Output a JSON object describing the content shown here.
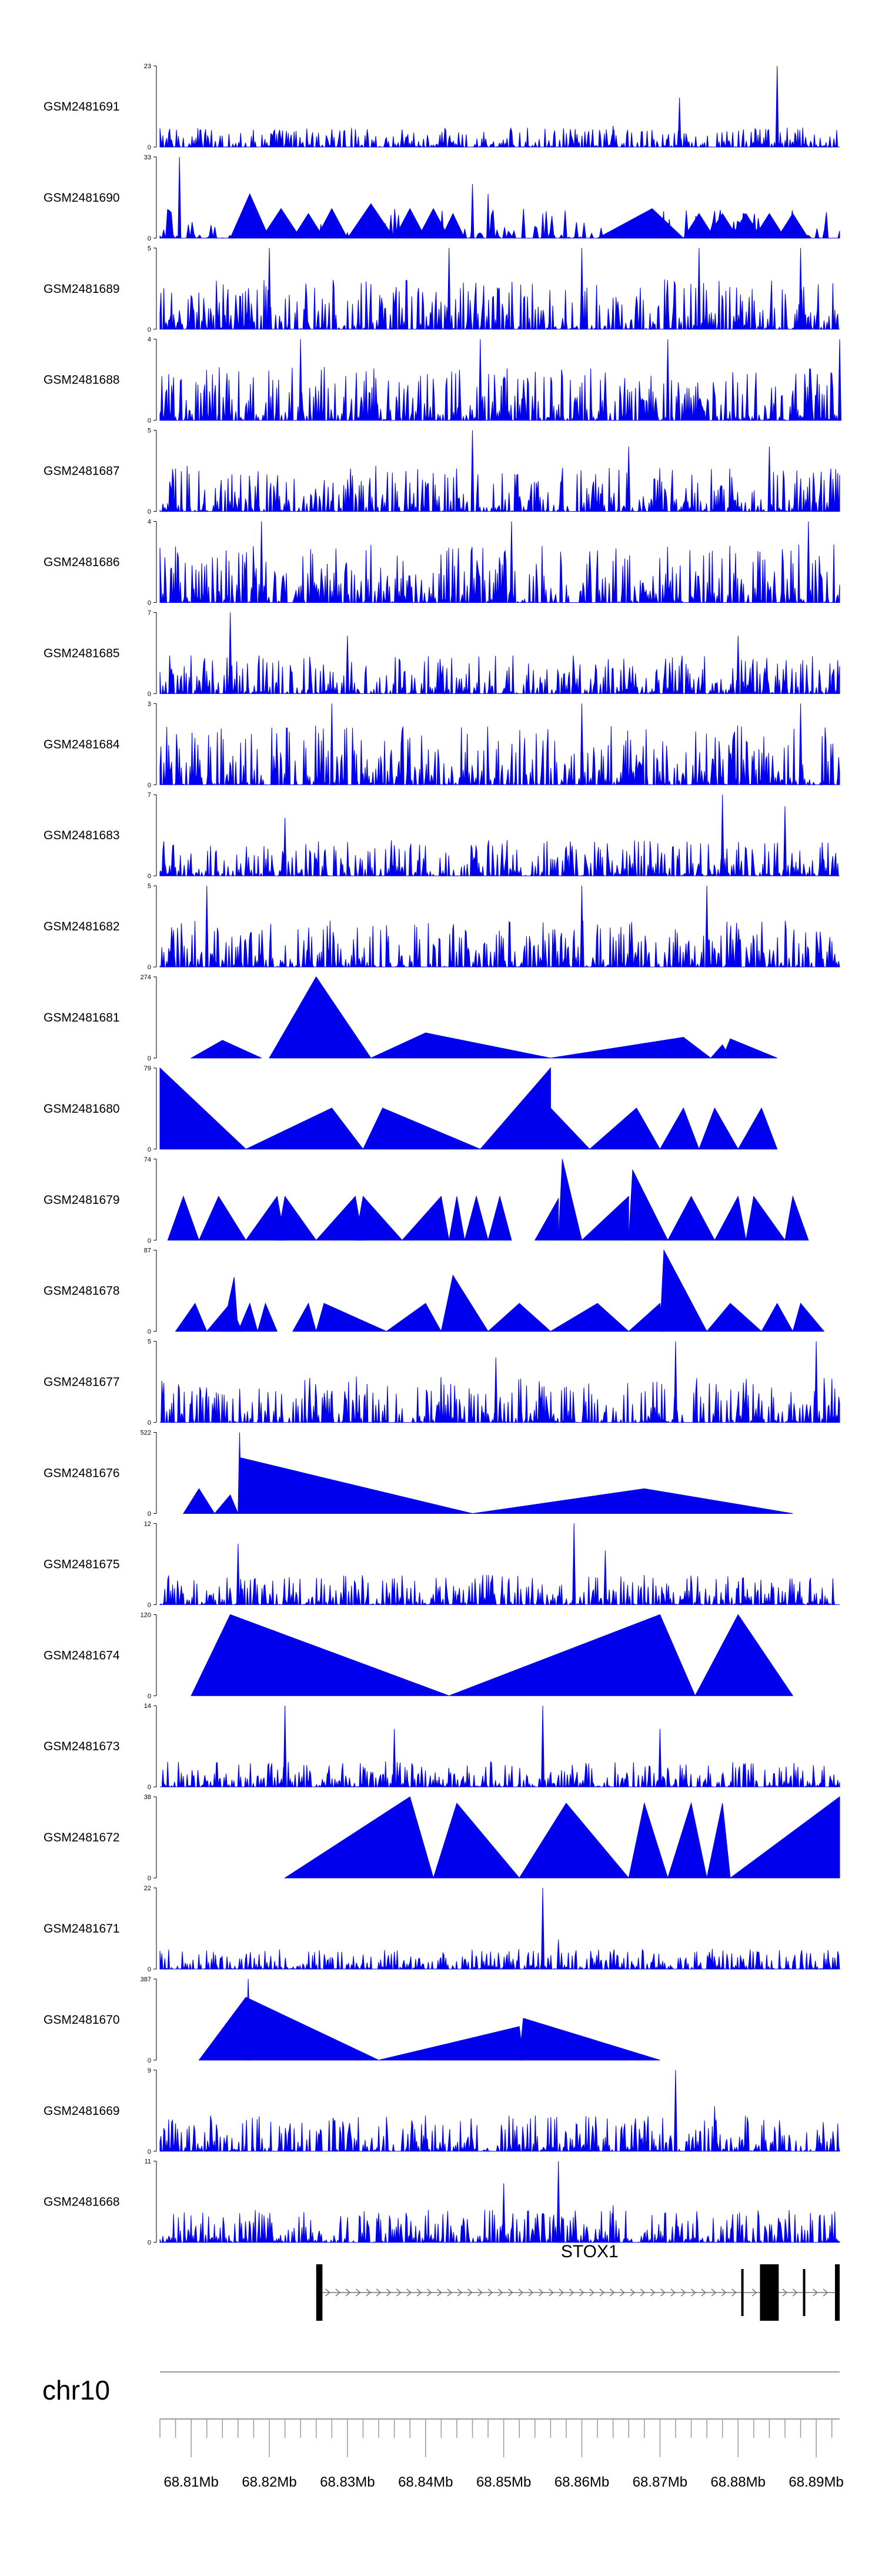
{
  "colors": {
    "signal": "#0000ee",
    "axis": "#000000",
    "gene": "#000000",
    "line": "#999999"
  },
  "genome": {
    "chromosome": "chr10",
    "start": 68806000,
    "end": 68893000
  },
  "gene": {
    "name": "STOX1",
    "strand": "+",
    "start": 68826000,
    "end": 68893000,
    "exons": [
      {
        "start": 68826000,
        "end": 68826800,
        "kind": "cds"
      },
      {
        "start": 68880400,
        "end": 68880700,
        "kind": "utr"
      },
      {
        "start": 68882800,
        "end": 68885200,
        "kind": "cds"
      },
      {
        "start": 68888300,
        "end": 68888600,
        "kind": "utr"
      },
      {
        "start": 68892400,
        "end": 68893000,
        "kind": "cds"
      }
    ]
  },
  "axis": {
    "ticks": [
      {
        "pos": 68810000,
        "label": "68.81Mb"
      },
      {
        "pos": 68820000,
        "label": "68.82Mb"
      },
      {
        "pos": 68830000,
        "label": "68.83Mb"
      },
      {
        "pos": 68840000,
        "label": "68.84Mb"
      },
      {
        "pos": 68850000,
        "label": "68.85Mb"
      },
      {
        "pos": 68860000,
        "label": "68.86Mb"
      },
      {
        "pos": 68870000,
        "label": "68.87Mb"
      },
      {
        "pos": 68880000,
        "label": "68.88Mb"
      },
      {
        "pos": 68890000,
        "label": "68.89Mb"
      }
    ],
    "minor_step": 2000
  },
  "chart_data": {
    "type": "area",
    "tracks": [
      {
        "name": "GSM2481691",
        "ymax": 23,
        "kind": "dense",
        "base": 2.5,
        "peaks": [
          [
            68872500,
            14
          ],
          [
            68885000,
            23
          ],
          [
            68828000,
            5
          ],
          [
            68864000,
            6
          ]
        ]
      },
      {
        "name": "GSM2481690",
        "ymax": 33,
        "kind": "mixed",
        "base": 6,
        "peaks": [
          [
            68808500,
            33
          ],
          [
            68846000,
            22
          ],
          [
            68848000,
            18
          ],
          [
            68855000,
            10
          ]
        ],
        "triangles": [
          [
            68815000,
            68817500,
            68820000,
            18
          ],
          [
            68819000,
            68821500,
            68824000,
            12
          ],
          [
            68823000,
            68825000,
            68827000,
            10
          ],
          [
            68826000,
            68828000,
            68830000,
            12
          ],
          [
            68830000,
            68833000,
            68836000,
            14
          ],
          [
            68836000,
            68838000,
            68840000,
            12
          ],
          [
            68839000,
            68841000,
            68843000,
            12
          ],
          [
            68842000,
            68843500,
            68845000,
            10
          ],
          [
            68862000,
            68869000,
            68873000,
            12
          ],
          [
            68873000,
            68875000,
            68877000,
            10
          ],
          [
            68876000,
            68878000,
            68880000,
            10
          ],
          [
            68879000,
            68881000,
            68883000,
            10
          ],
          [
            68882000,
            68884000,
            68886000,
            10
          ],
          [
            68885000,
            68887000,
            68889000,
            10
          ]
        ]
      },
      {
        "name": "GSM2481689",
        "ymax": 5,
        "kind": "dense",
        "base": 1.4,
        "peaks": [
          [
            68820000,
            5
          ],
          [
            68843000,
            5
          ],
          [
            68860000,
            5
          ],
          [
            68875000,
            5
          ],
          [
            68888000,
            5
          ]
        ]
      },
      {
        "name": "GSM2481688",
        "ymax": 4,
        "kind": "dense",
        "base": 1.2,
        "peaks": [
          [
            68824000,
            4
          ],
          [
            68847000,
            4
          ],
          [
            68871000,
            4
          ],
          [
            68893000,
            4
          ]
        ]
      },
      {
        "name": "GSM2481687",
        "ymax": 5,
        "kind": "dense",
        "base": 1.3,
        "peaks": [
          [
            68846000,
            5
          ],
          [
            68866000,
            4
          ],
          [
            68884000,
            4
          ]
        ]
      },
      {
        "name": "GSM2481686",
        "ymax": 4,
        "kind": "dense",
        "base": 1.3,
        "peaks": [
          [
            68819000,
            4
          ],
          [
            68851000,
            4
          ],
          [
            68889000,
            4
          ]
        ]
      },
      {
        "name": "GSM2481685",
        "ymax": 7,
        "kind": "dense",
        "base": 1.5,
        "peaks": [
          [
            68815000,
            7
          ],
          [
            68830000,
            5
          ],
          [
            68880000,
            5
          ]
        ]
      },
      {
        "name": "GSM2481684",
        "ymax": 3,
        "kind": "dense",
        "base": 1.0,
        "peaks": [
          [
            68828000,
            3
          ],
          [
            68860000,
            3
          ],
          [
            68888000,
            3
          ]
        ]
      },
      {
        "name": "GSM2481683",
        "ymax": 7,
        "kind": "dense",
        "base": 1.4,
        "peaks": [
          [
            68822000,
            5
          ],
          [
            68878000,
            7
          ],
          [
            68886000,
            6
          ]
        ]
      },
      {
        "name": "GSM2481682",
        "ymax": 5,
        "kind": "dense",
        "base": 1.3,
        "peaks": [
          [
            68812000,
            5
          ],
          [
            68860000,
            5
          ],
          [
            68876000,
            5
          ]
        ]
      },
      {
        "name": "GSM2481681",
        "ymax": 274,
        "kind": "sparse",
        "triangles": [
          [
            68810000,
            68814000,
            68819000,
            60
          ],
          [
            68820000,
            68826000,
            68833000,
            274
          ],
          [
            68833000,
            68840000,
            68856000,
            85
          ],
          [
            68856000,
            68873000,
            68876500,
            70
          ],
          [
            68876500,
            68878000,
            68879000,
            45
          ],
          [
            68878000,
            68879000,
            68885000,
            65
          ]
        ]
      },
      {
        "name": "GSM2481680",
        "ymax": 79,
        "kind": "sparse",
        "triangles": [
          [
            68806000,
            68806000,
            68817000,
            79
          ],
          [
            68817000,
            68828000,
            68832000,
            40
          ],
          [
            68832000,
            68834500,
            68847000,
            40
          ],
          [
            68847000,
            68856000,
            68856000,
            79
          ],
          [
            68856000,
            68856000,
            68861000,
            40
          ],
          [
            68861000,
            68867000,
            68870000,
            40
          ],
          [
            68870000,
            68873000,
            68875000,
            40
          ],
          [
            68875000,
            68877000,
            68880000,
            40
          ],
          [
            68880000,
            68883000,
            68885000,
            40
          ]
        ]
      },
      {
        "name": "GSM2481679",
        "ymax": 74,
        "kind": "sparse",
        "triangles": [
          [
            68807000,
            68809000,
            68811000,
            40
          ],
          [
            68811000,
            68813500,
            68817000,
            40
          ],
          [
            68817000,
            68821000,
            68822000,
            40
          ],
          [
            68821000,
            68822000,
            68826000,
            40
          ],
          [
            68826000,
            68831000,
            68832000,
            40
          ],
          [
            68831000,
            68832000,
            68837000,
            40
          ],
          [
            68837000,
            68842000,
            68843000,
            40
          ],
          [
            68843000,
            68844000,
            68845000,
            40
          ],
          [
            68845000,
            68846500,
            68848000,
            40
          ],
          [
            68848000,
            68849500,
            68851000,
            40
          ],
          [
            68854000,
            68857000,
            68857000,
            38
          ],
          [
            68857000,
            68857500,
            68860000,
            74
          ],
          [
            68860000,
            68866000,
            68866000,
            40
          ],
          [
            68866000,
            68866500,
            68871000,
            64
          ],
          [
            68871000,
            68874000,
            68877000,
            40
          ],
          [
            68877000,
            68880000,
            68881000,
            40
          ],
          [
            68881000,
            68882000,
            68886000,
            40
          ],
          [
            68886000,
            68887000,
            68889000,
            40
          ]
        ]
      },
      {
        "name": "GSM2481678",
        "ymax": 87,
        "kind": "sparse",
        "triangles": [
          [
            68808000,
            68810500,
            68812000,
            30
          ],
          [
            68812000,
            68815000,
            68816500,
            30
          ],
          [
            68814000,
            68815500,
            68816000,
            58
          ],
          [
            68816000,
            68817500,
            68818500,
            30
          ],
          [
            68818500,
            68819500,
            68821000,
            30
          ],
          [
            68823000,
            68825000,
            68826000,
            30
          ],
          [
            68826000,
            68827000,
            68835000,
            30
          ],
          [
            68835000,
            68840000,
            68842000,
            30
          ],
          [
            68842000,
            68843500,
            68848000,
            60
          ],
          [
            68848000,
            68852000,
            68856000,
            30
          ],
          [
            68856000,
            68862000,
            68866000,
            30
          ],
          [
            68866000,
            68870000,
            68870500,
            30
          ],
          [
            68870000,
            68870500,
            68876000,
            87
          ],
          [
            68876000,
            68879000,
            68883000,
            30
          ],
          [
            68883000,
            68885000,
            68887000,
            30
          ],
          [
            68887000,
            68888000,
            68891000,
            30
          ]
        ]
      },
      {
        "name": "GSM2481677",
        "ymax": 5,
        "kind": "dense",
        "base": 1.3,
        "peaks": [
          [
            68849000,
            4
          ],
          [
            68872000,
            5
          ],
          [
            68890000,
            5
          ]
        ]
      },
      {
        "name": "GSM2481676",
        "ymax": 522,
        "kind": "sparse",
        "triangles": [
          [
            68809000,
            68811000,
            68813000,
            160
          ],
          [
            68813000,
            68815000,
            68816000,
            120
          ],
          [
            68816000,
            68816200,
            68846000,
            360
          ],
          [
            68816000,
            68816200,
            68816400,
            522
          ],
          [
            68846000,
            68868000,
            68887000,
            160
          ]
        ]
      },
      {
        "name": "GSM2481675",
        "ymax": 12,
        "kind": "dense",
        "base": 2.0,
        "peaks": [
          [
            68816000,
            9
          ],
          [
            68859000,
            12
          ],
          [
            68863000,
            8
          ]
        ]
      },
      {
        "name": "GSM2481674",
        "ymax": 120,
        "kind": "sparse",
        "triangles": [
          [
            68810000,
            68815000,
            68843000,
            120
          ],
          [
            68843000,
            68870000,
            68874500,
            120
          ],
          [
            68874500,
            68880000,
            68887000,
            120
          ]
        ]
      },
      {
        "name": "GSM2481673",
        "ymax": 14,
        "kind": "dense",
        "base": 2.0,
        "peaks": [
          [
            68822000,
            14
          ],
          [
            68836000,
            10
          ],
          [
            68855000,
            14
          ],
          [
            68870000,
            10
          ]
        ]
      },
      {
        "name": "GSM2481672",
        "ymax": 38,
        "kind": "sparse",
        "triangles": [
          [
            68822000,
            68838000,
            68841000,
            38
          ],
          [
            68841000,
            68844000,
            68852000,
            35
          ],
          [
            68852000,
            68858000,
            68866000,
            35
          ],
          [
            68866000,
            68868000,
            68871000,
            35
          ],
          [
            68871000,
            68874000,
            68876000,
            35
          ],
          [
            68876000,
            68878000,
            68879000,
            35
          ],
          [
            68879000,
            68893000,
            68893000,
            38
          ]
        ]
      },
      {
        "name": "GSM2481671",
        "ymax": 22,
        "kind": "dense",
        "base": 2.5,
        "peaks": [
          [
            68855000,
            22
          ],
          [
            68857000,
            8
          ]
        ]
      },
      {
        "name": "GSM2481670",
        "ymax": 387,
        "kind": "sparse",
        "triangles": [
          [
            68811000,
            68817000,
            68834000,
            300
          ],
          [
            68817000,
            68817300,
            68817600,
            387
          ],
          [
            68834000,
            68852000,
            68852500,
            160
          ],
          [
            68852000,
            68852500,
            68870000,
            200
          ]
        ]
      },
      {
        "name": "GSM2481669",
        "ymax": 9,
        "kind": "dense",
        "base": 1.8,
        "peaks": [
          [
            68872000,
            9
          ],
          [
            68877000,
            5
          ]
        ]
      },
      {
        "name": "GSM2481668",
        "ymax": 11,
        "kind": "dense",
        "base": 2.0,
        "peaks": [
          [
            68857000,
            11
          ],
          [
            68850000,
            8
          ],
          [
            68864000,
            5
          ]
        ]
      }
    ]
  }
}
